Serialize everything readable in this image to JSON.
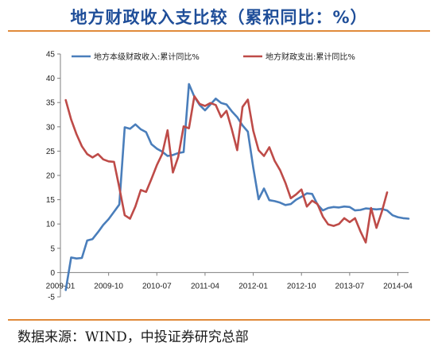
{
  "title": "地方财政收入支比较（累积同比：%）",
  "source": "数据来源：WIND，中投证券研究总部",
  "chart_data": {
    "type": "line",
    "ylim": [
      -5,
      45
    ],
    "yticks": [
      -5,
      0,
      5,
      10,
      15,
      20,
      25,
      30,
      35,
      40,
      45
    ],
    "xlabels": [
      "2009-01",
      "2009-10",
      "2010-07",
      "2011-04",
      "2012-01",
      "2012-10",
      "2013-07",
      "2014-04"
    ],
    "legend_position": "top",
    "x": [
      "2009-01",
      "2009-02",
      "2009-03",
      "2009-04",
      "2009-05",
      "2009-06",
      "2009-07",
      "2009-08",
      "2009-09",
      "2009-10",
      "2009-11",
      "2009-12",
      "2010-01",
      "2010-02",
      "2010-03",
      "2010-04",
      "2010-05",
      "2010-06",
      "2010-07",
      "2010-08",
      "2010-09",
      "2010-10",
      "2010-11",
      "2010-12",
      "2011-01",
      "2011-02",
      "2011-03",
      "2011-04",
      "2011-05",
      "2011-06",
      "2011-07",
      "2011-08",
      "2011-09",
      "2011-10",
      "2011-11",
      "2011-12",
      "2012-01",
      "2012-02",
      "2012-03",
      "2012-04",
      "2012-05",
      "2012-06",
      "2012-07",
      "2012-08",
      "2012-09",
      "2012-10",
      "2012-11",
      "2012-12",
      "2013-01",
      "2013-02",
      "2013-03",
      "2013-04",
      "2013-05",
      "2013-06",
      "2013-07",
      "2013-08",
      "2013-09",
      "2013-10",
      "2013-11",
      "2013-12",
      "2014-01",
      "2014-02",
      "2014-03",
      "2014-04",
      "2014-05",
      "2014-06"
    ],
    "series": [
      {
        "name": "地方本级财政收入:累计同比%",
        "color": "#4a7ebb",
        "values": [
          null,
          -3.6,
          3.1,
          2.9,
          3.0,
          6.6,
          6.9,
          8.3,
          9.8,
          11.0,
          12.5,
          14.0,
          29.9,
          29.6,
          30.5,
          29.5,
          28.9,
          26.4,
          25.5,
          24.9,
          24.0,
          24.2,
          24.6,
          24.8,
          38.8,
          36.2,
          34.5,
          33.4,
          34.6,
          35.8,
          34.9,
          34.6,
          33.2,
          32.0,
          30.3,
          29.0,
          21.6,
          15.1,
          17.3,
          14.9,
          14.7,
          14.4,
          13.9,
          14.1,
          15.0,
          15.6,
          16.3,
          16.2,
          14.0,
          12.8,
          13.3,
          13.5,
          13.4,
          13.6,
          13.5,
          12.8,
          12.9,
          13.2,
          13.1,
          13.0,
          13.1,
          12.8,
          11.8,
          11.4,
          11.2,
          11.1
        ]
      },
      {
        "name": "地方财政支出:累计同比%",
        "color": "#be4b48",
        "values": [
          null,
          35.5,
          31.5,
          28.5,
          26.0,
          24.4,
          23.7,
          24.4,
          23.3,
          22.9,
          22.8,
          17.5,
          11.8,
          11.1,
          13.6,
          17.0,
          16.6,
          19.3,
          22.1,
          24.4,
          29.3,
          20.6,
          23.8,
          30.1,
          29.7,
          36.3,
          34.7,
          34.3,
          34.9,
          34.5,
          32.0,
          33.3,
          29.5,
          25.2,
          34.1,
          35.6,
          29.2,
          25.2,
          24.0,
          25.8,
          23.0,
          21.1,
          18.5,
          15.3,
          16.1,
          17.1,
          13.6,
          14.8,
          14.1,
          11.5,
          9.9,
          9.6,
          10.0,
          11.2,
          10.4,
          11.2,
          8.5,
          6.2,
          13.3,
          9.2,
          12.5,
          16.5,
          null,
          null,
          null,
          null
        ]
      }
    ]
  }
}
